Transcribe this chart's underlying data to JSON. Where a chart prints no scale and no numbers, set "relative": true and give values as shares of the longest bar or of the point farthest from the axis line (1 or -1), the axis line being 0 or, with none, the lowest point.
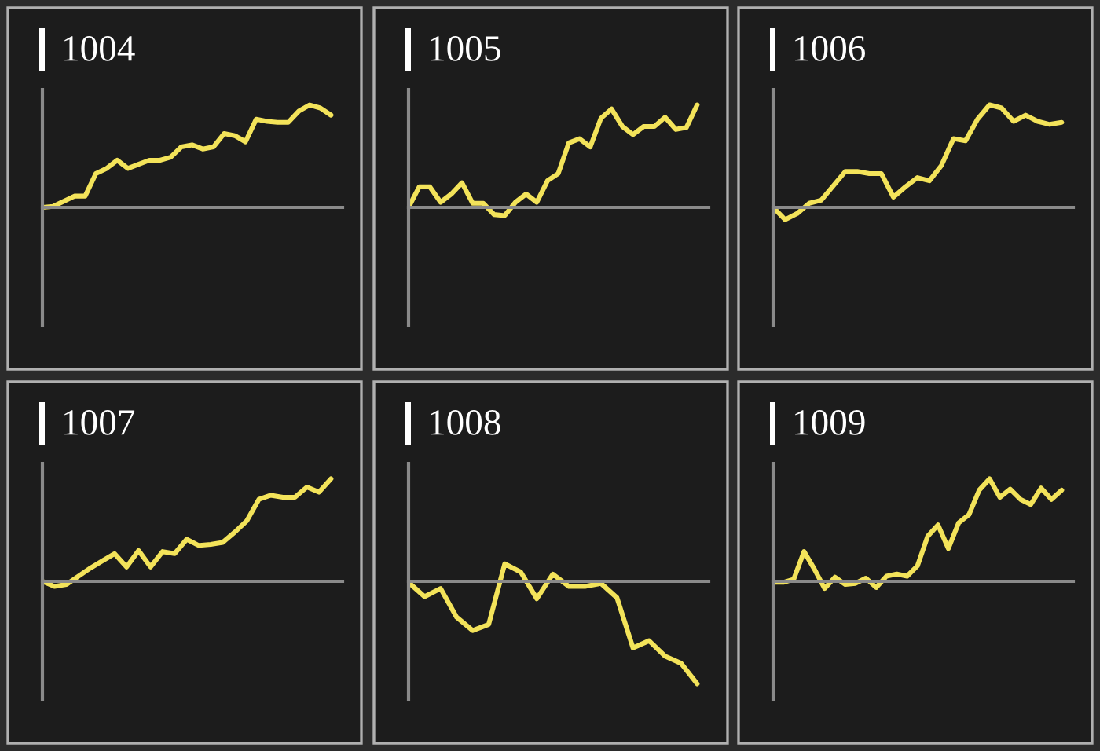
{
  "chart_data": [
    {
      "type": "line",
      "title": "1004",
      "relative": true,
      "categories": [
        null,
        null,
        null,
        null,
        null,
        null,
        null,
        null,
        null,
        null,
        null,
        null,
        null,
        null,
        null,
        null,
        null,
        null,
        null,
        null,
        null,
        null,
        null,
        null,
        null,
        null,
        null,
        null
      ],
      "series": [
        {
          "color": "#f3e35a",
          "values": [
            0,
            0.01,
            0.06,
            0.11,
            0.11,
            0.33,
            0.38,
            0.46,
            0.38,
            0.42,
            0.46,
            0.46,
            0.49,
            0.59,
            0.61,
            0.57,
            0.59,
            0.72,
            0.7,
            0.64,
            0.86,
            0.84,
            0.83,
            0.83,
            0.94,
            1,
            0.97,
            0.9
          ]
        }
      ]
    },
    {
      "type": "line",
      "title": "1005",
      "relative": true,
      "categories": [
        null,
        null,
        null,
        null,
        null,
        null,
        null,
        null,
        null,
        null,
        null,
        null,
        null,
        null,
        null,
        null,
        null,
        null,
        null,
        null,
        null,
        null,
        null,
        null,
        null,
        null,
        null,
        null
      ],
      "series": [
        {
          "color": "#f3e35a",
          "values": [
            0,
            0.2,
            0.2,
            0.05,
            0.13,
            0.24,
            0.04,
            0.04,
            -0.07,
            -0.08,
            0.05,
            0.13,
            0.05,
            0.26,
            0.33,
            0.63,
            0.67,
            0.59,
            0.87,
            0.96,
            0.79,
            0.71,
            0.79,
            0.79,
            0.88,
            0.76,
            0.78,
            1
          ]
        }
      ]
    },
    {
      "type": "line",
      "title": "1006",
      "relative": true,
      "categories": [
        null,
        null,
        null,
        null,
        null,
        null,
        null,
        null,
        null,
        null,
        null,
        null,
        null,
        null,
        null,
        null,
        null,
        null,
        null,
        null,
        null,
        null,
        null,
        null,
        null
      ],
      "series": [
        {
          "color": "#f3e35a",
          "values": [
            0,
            -0.12,
            -0.06,
            0.04,
            0.07,
            0.21,
            0.35,
            0.35,
            0.33,
            0.33,
            0.1,
            0.2,
            0.29,
            0.26,
            0.41,
            0.67,
            0.65,
            0.86,
            1,
            0.97,
            0.84,
            0.9,
            0.84,
            0.81,
            0.83
          ]
        }
      ]
    },
    {
      "type": "line",
      "title": "1007",
      "relative": true,
      "categories": [
        null,
        null,
        null,
        null,
        null,
        null,
        null,
        null,
        null,
        null,
        null,
        null,
        null,
        null,
        null,
        null,
        null,
        null,
        null,
        null,
        null,
        null,
        null,
        null,
        null
      ],
      "series": [
        {
          "color": "#f3e35a",
          "values": [
            0,
            -0.05,
            -0.03,
            0.05,
            0.13,
            0.2,
            0.27,
            0.14,
            0.3,
            0.14,
            0.29,
            0.27,
            0.41,
            0.35,
            0.36,
            0.38,
            0.48,
            0.59,
            0.8,
            0.84,
            0.82,
            0.82,
            0.92,
            0.87,
            1
          ]
        }
      ]
    },
    {
      "type": "line",
      "title": "1008",
      "relative": true,
      "categories": [
        null,
        null,
        null,
        null,
        null,
        null,
        null,
        null,
        null,
        null,
        null,
        null,
        null,
        null,
        null,
        null,
        null,
        null,
        null
      ],
      "series": [
        {
          "color": "#f3e35a",
          "values": [
            -0.01,
            -0.15,
            -0.07,
            -0.35,
            -0.48,
            -0.42,
            0.17,
            0.09,
            -0.17,
            0.07,
            -0.05,
            -0.05,
            -0.02,
            -0.16,
            -0.65,
            -0.58,
            -0.73,
            -0.8,
            -1
          ]
        }
      ]
    },
    {
      "type": "line",
      "title": "1009",
      "relative": true,
      "categories": [
        null,
        null,
        null,
        null,
        null,
        null,
        null,
        null,
        null,
        null,
        null,
        null,
        null,
        null,
        null,
        null,
        null,
        null,
        null,
        null,
        null,
        null,
        null,
        null,
        null,
        null,
        null,
        null,
        null
      ],
      "series": [
        {
          "color": "#f3e35a",
          "values": [
            -0.01,
            -0.01,
            0.02,
            0.29,
            0.12,
            -0.07,
            0.04,
            -0.03,
            -0.02,
            0.03,
            -0.06,
            0.05,
            0.07,
            0.05,
            0.15,
            0.44,
            0.55,
            0.32,
            0.57,
            0.65,
            0.89,
            1,
            0.82,
            0.9,
            0.8,
            0.75,
            0.91,
            0.8,
            0.89
          ]
        }
      ]
    }
  ]
}
